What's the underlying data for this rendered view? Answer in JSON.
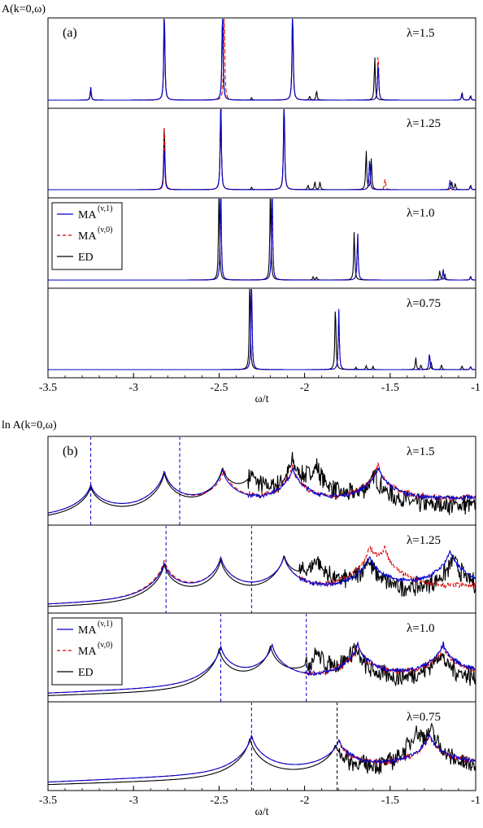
{
  "chart_data": [
    {
      "type": "line",
      "figure_label": "(a)",
      "ylabel": "A(k=0,ω)",
      "xlabel": "ω/t",
      "xlim": [
        -3.5,
        -1.0
      ],
      "x_ticks": [
        "-3.5",
        "-3",
        "-2.5",
        "-2",
        "-1.5",
        "-1"
      ],
      "legend": {
        "location": "inside panel λ=1.0, top-left",
        "entries": [
          {
            "label": "MA",
            "sup": "(v,1)",
            "color": "#0000cc",
            "dash": "solid"
          },
          {
            "label": "MA",
            "sup": "(v,0)",
            "color": "#dd0000",
            "dash": "dashed"
          },
          {
            "label": "ED",
            "color": "#000000",
            "dash": "solid"
          }
        ]
      },
      "panels": [
        {
          "label": "λ=1.5",
          "peaks": {
            "ED": [
              [
                -3.25,
                0.12
              ],
              [
                -2.82,
                1.2
              ],
              [
                -2.48,
                1.2
              ],
              [
                -2.31,
                0.03
              ],
              [
                -2.07,
                1.2
              ],
              [
                -1.97,
                0.05
              ],
              [
                -1.93,
                0.12
              ],
              [
                -1.59,
                0.55
              ],
              [
                -1.08,
                0.1
              ],
              [
                -1.03,
                0.06
              ]
            ],
            "MA(v,1)": [
              [
                -3.25,
                0.16
              ],
              [
                -2.82,
                1.2
              ],
              [
                -2.48,
                1.2
              ],
              [
                -2.07,
                1.2
              ],
              [
                -1.57,
                0.5
              ],
              [
                -1.08,
                0.08
              ],
              [
                -1.03,
                0.05
              ]
            ],
            "MA(v,0)": [
              [
                -3.25,
                0.16
              ],
              [
                -2.82,
                1.2
              ],
              [
                -2.47,
                1.2
              ],
              [
                -2.07,
                1.2
              ],
              [
                -1.57,
                0.62
              ],
              [
                -1.08,
                0.08
              ],
              [
                -1.03,
                0.05
              ]
            ]
          }
        },
        {
          "label": "λ=1.25",
          "peaks": {
            "ED": [
              [
                -2.82,
                0.85
              ],
              [
                -2.49,
                1.2
              ],
              [
                -2.31,
                0.03
              ],
              [
                -2.12,
                1.2
              ],
              [
                -1.98,
                0.06
              ],
              [
                -1.94,
                0.1
              ],
              [
                -1.91,
                0.1
              ],
              [
                -1.64,
                0.5
              ],
              [
                -1.61,
                0.4
              ],
              [
                -1.14,
                0.1
              ],
              [
                -1.12,
                0.08
              ],
              [
                -1.03,
                0.06
              ]
            ],
            "MA(v,1)": [
              [
                -2.82,
                0.58
              ],
              [
                -2.49,
                1.2
              ],
              [
                -2.12,
                1.2
              ],
              [
                -1.62,
                0.42
              ],
              [
                -1.15,
                0.12
              ],
              [
                -1.03,
                0.05
              ]
            ],
            "MA(v,0)": [
              [
                -2.82,
                0.92
              ],
              [
                -2.49,
                1.2
              ],
              [
                -2.12,
                1.2
              ],
              [
                -1.62,
                0.36
              ],
              [
                -1.53,
                0.15
              ],
              [
                -1.03,
                0.04
              ]
            ]
          }
        },
        {
          "label": "λ=1.0",
          "peaks": {
            "ED": [
              [
                -2.5,
                1.2
              ],
              [
                -2.2,
                1.2
              ],
              [
                -1.95,
                0.04
              ],
              [
                -1.93,
                0.04
              ],
              [
                -1.71,
                0.62
              ],
              [
                -1.21,
                0.12
              ],
              [
                -1.18,
                0.08
              ],
              [
                -1.03,
                0.05
              ]
            ],
            "MA(v,1)": [
              [
                -2.49,
                1.2
              ],
              [
                -2.19,
                1.2
              ],
              [
                -1.69,
                0.6
              ],
              [
                -1.19,
                0.14
              ],
              [
                -1.03,
                0.04
              ]
            ],
            "MA(v,0)": [
              [
                -2.49,
                1.2
              ],
              [
                -2.19,
                1.2
              ],
              [
                -1.69,
                0.58
              ],
              [
                -1.19,
                0.12
              ],
              [
                -1.03,
                0.04
              ]
            ]
          }
        },
        {
          "label": "λ=0.75",
          "peaks": {
            "ED": [
              [
                -2.32,
                1.2
              ],
              [
                -1.82,
                0.85
              ],
              [
                -1.7,
                0.03
              ],
              [
                -1.64,
                0.05
              ],
              [
                -1.6,
                0.04
              ],
              [
                -1.35,
                0.15
              ],
              [
                -1.32,
                0.06
              ],
              [
                -1.26,
                0.1
              ],
              [
                -1.2,
                0.06
              ],
              [
                -1.08,
                0.05
              ],
              [
                -1.03,
                0.04
              ]
            ],
            "MA(v,1)": [
              [
                -2.31,
                1.2
              ],
              [
                -1.8,
                0.76
              ],
              [
                -1.27,
                0.22
              ],
              [
                -1.03,
                0.04
              ]
            ],
            "MA(v,0)": [
              [
                -2.31,
                1.2
              ],
              [
                -1.8,
                0.74
              ],
              [
                -1.27,
                0.2
              ],
              [
                -1.03,
                0.04
              ]
            ]
          }
        }
      ]
    },
    {
      "type": "line",
      "figure_label": "(b)",
      "ylabel": "ln A(k=0,ω)",
      "xlabel": "ω/t",
      "xlim": [
        -3.5,
        -1.0
      ],
      "x_ticks": [
        "-3.5",
        "-3",
        "-2.5",
        "-2",
        "-1.5",
        "-1"
      ],
      "legend": {
        "location": "inside panel λ=1.0, top-left",
        "entries": [
          {
            "label": "MA",
            "sup": "(v,1)",
            "color": "#0000cc",
            "dash": "solid"
          },
          {
            "label": "MA",
            "sup": "(v,0)",
            "color": "#dd0000",
            "dash": "dashed"
          },
          {
            "label": "ED",
            "color": "#000000",
            "dash": "solid"
          }
        ]
      },
      "panels": [
        {
          "label": "λ=1.5",
          "vlines": [
            {
              "x": -3.25,
              "color": "#0000cc"
            },
            {
              "x": -2.73,
              "color": "#0000cc"
            }
          ],
          "peaks": {
            "ED": [
              [
                -3.25,
                0.62
              ],
              [
                -2.82,
                0.82
              ],
              [
                -2.48,
                0.78
              ],
              [
                -2.31,
                0.55
              ],
              [
                -2.07,
                0.8
              ],
              [
                -1.93,
                0.7
              ],
              [
                -1.59,
                0.7
              ]
            ],
            "MA(v,1)": [
              [
                -3.25,
                0.6
              ],
              [
                -2.82,
                0.8
              ],
              [
                -2.48,
                0.76
              ],
              [
                -2.07,
                0.78
              ],
              [
                -1.57,
                0.74
              ]
            ],
            "MA(v,0)": [
              [
                -3.25,
                0.6
              ],
              [
                -2.82,
                0.8
              ],
              [
                -2.47,
                0.76
              ],
              [
                -2.07,
                0.78
              ],
              [
                -1.57,
                0.78
              ]
            ]
          },
          "noise_from": -2.33
        },
        {
          "label": "λ=1.25",
          "vlines": [
            {
              "x": -2.81,
              "color": "#0000cc"
            },
            {
              "x": -2.31,
              "color": "#0000cc"
            }
          ],
          "peaks": {
            "ED": [
              [
                -2.82,
                0.78
              ],
              [
                -2.49,
                0.8
              ],
              [
                -2.12,
                0.78
              ],
              [
                -1.93,
                0.7
              ],
              [
                -1.63,
                0.76
              ],
              [
                -1.13,
                0.8
              ]
            ],
            "MA(v,1)": [
              [
                -2.82,
                0.74
              ],
              [
                -2.49,
                0.78
              ],
              [
                -2.12,
                0.76
              ],
              [
                -1.62,
                0.72
              ],
              [
                -1.15,
                0.78
              ]
            ],
            "MA(v,0)": [
              [
                -2.82,
                0.8
              ],
              [
                -2.49,
                0.78
              ],
              [
                -2.12,
                0.76
              ],
              [
                -1.62,
                0.7
              ],
              [
                -1.53,
                0.62
              ]
            ]
          },
          "noise_from": -2.03
        },
        {
          "label": "λ=1.0",
          "vlines": [
            {
              "x": -2.49,
              "color": "#0000cc"
            },
            {
              "x": -1.99,
              "color": "#0000cc"
            }
          ],
          "peaks": {
            "ED": [
              [
                -2.5,
                0.8
              ],
              [
                -2.2,
                0.78
              ],
              [
                -1.93,
                0.6
              ],
              [
                -1.71,
                0.75
              ],
              [
                -1.21,
                0.68
              ]
            ],
            "MA(v,1)": [
              [
                -2.49,
                0.78
              ],
              [
                -2.19,
                0.76
              ],
              [
                -1.69,
                0.74
              ],
              [
                -1.19,
                0.68
              ]
            ],
            "MA(v,0)": [
              [
                -2.49,
                0.78
              ],
              [
                -2.19,
                0.76
              ],
              [
                -1.69,
                0.72
              ],
              [
                -1.19,
                0.62
              ]
            ]
          },
          "noise_from": -2.0
        },
        {
          "label": "λ=0.75",
          "vlines": [
            {
              "x": -2.31,
              "color": "#0000cc"
            },
            {
              "x": -1.81,
              "color": "#000000"
            }
          ],
          "peaks": {
            "ED": [
              [
                -2.32,
                0.84
              ],
              [
                -1.82,
                0.62
              ],
              [
                -1.35,
                0.65
              ],
              [
                -1.26,
                0.7
              ]
            ],
            "MA(v,1)": [
              [
                -2.31,
                0.8
              ],
              [
                -1.8,
                0.6
              ],
              [
                -1.27,
                0.66
              ]
            ],
            "MA(v,0)": [
              [
                -2.31,
                0.8
              ],
              [
                -1.8,
                0.6
              ],
              [
                -1.27,
                0.64
              ]
            ]
          },
          "noise_from": -1.8
        }
      ]
    }
  ]
}
